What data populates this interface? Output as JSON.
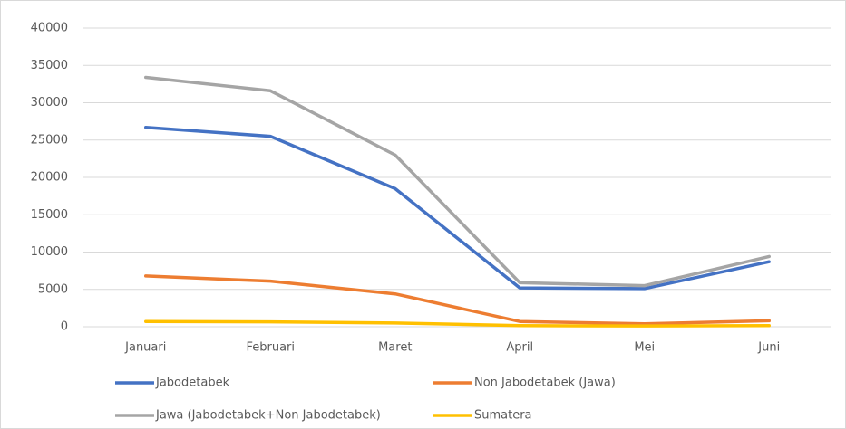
{
  "chart_data": {
    "type": "line",
    "categories": [
      "Januari",
      "Februari",
      "Maret",
      "April",
      "Mei",
      "Juni"
    ],
    "series": [
      {
        "name": "Jabodetabek",
        "color": "#4472c4",
        "values": [
          26700,
          25500,
          18500,
          5200,
          5100,
          8700
        ]
      },
      {
        "name": "Non Jabodetabek (Jawa)",
        "color": "#ed7d31",
        "values": [
          6800,
          6100,
          4400,
          700,
          400,
          800
        ]
      },
      {
        "name": "Jawa (Jabodetabek+Non Jabodetabek)",
        "color": "#a5a5a5",
        "values": [
          33400,
          31600,
          23000,
          5900,
          5500,
          9400
        ]
      },
      {
        "name": "Sumatera",
        "color": "#ffc000",
        "values": [
          700,
          650,
          500,
          150,
          100,
          150
        ]
      }
    ],
    "ylim": [
      0,
      40000
    ],
    "yticks": [
      0,
      5000,
      10000,
      15000,
      20000,
      25000,
      30000,
      35000,
      40000
    ],
    "grid": true,
    "legend": "bottom"
  }
}
